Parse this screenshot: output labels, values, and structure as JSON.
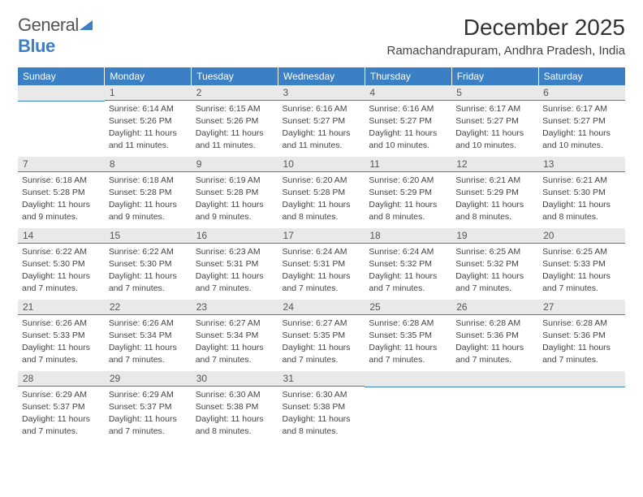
{
  "logo": {
    "text_a": "General",
    "text_b": "Blue"
  },
  "title": "December 2025",
  "location": "Ramachandrapuram, Andhra Pradesh, India",
  "calendar": {
    "header_bg": "#3b7fc4",
    "header_fg": "#ffffff",
    "daynum_bg": "#e9e9e9",
    "divider_color": "#3b7fc4",
    "body_fontsize": 10.5,
    "columns": [
      "Sunday",
      "Monday",
      "Tuesday",
      "Wednesday",
      "Thursday",
      "Friday",
      "Saturday"
    ],
    "weeks": [
      [
        null,
        {
          "n": "1",
          "sunrise": "6:14 AM",
          "sunset": "5:26 PM",
          "daylight": "11 hours and 11 minutes."
        },
        {
          "n": "2",
          "sunrise": "6:15 AM",
          "sunset": "5:26 PM",
          "daylight": "11 hours and 11 minutes."
        },
        {
          "n": "3",
          "sunrise": "6:16 AM",
          "sunset": "5:27 PM",
          "daylight": "11 hours and 11 minutes."
        },
        {
          "n": "4",
          "sunrise": "6:16 AM",
          "sunset": "5:27 PM",
          "daylight": "11 hours and 10 minutes."
        },
        {
          "n": "5",
          "sunrise": "6:17 AM",
          "sunset": "5:27 PM",
          "daylight": "11 hours and 10 minutes."
        },
        {
          "n": "6",
          "sunrise": "6:17 AM",
          "sunset": "5:27 PM",
          "daylight": "11 hours and 10 minutes."
        }
      ],
      [
        {
          "n": "7",
          "sunrise": "6:18 AM",
          "sunset": "5:28 PM",
          "daylight": "11 hours and 9 minutes."
        },
        {
          "n": "8",
          "sunrise": "6:18 AM",
          "sunset": "5:28 PM",
          "daylight": "11 hours and 9 minutes."
        },
        {
          "n": "9",
          "sunrise": "6:19 AM",
          "sunset": "5:28 PM",
          "daylight": "11 hours and 9 minutes."
        },
        {
          "n": "10",
          "sunrise": "6:20 AM",
          "sunset": "5:28 PM",
          "daylight": "11 hours and 8 minutes."
        },
        {
          "n": "11",
          "sunrise": "6:20 AM",
          "sunset": "5:29 PM",
          "daylight": "11 hours and 8 minutes."
        },
        {
          "n": "12",
          "sunrise": "6:21 AM",
          "sunset": "5:29 PM",
          "daylight": "11 hours and 8 minutes."
        },
        {
          "n": "13",
          "sunrise": "6:21 AM",
          "sunset": "5:30 PM",
          "daylight": "11 hours and 8 minutes."
        }
      ],
      [
        {
          "n": "14",
          "sunrise": "6:22 AM",
          "sunset": "5:30 PM",
          "daylight": "11 hours and 7 minutes."
        },
        {
          "n": "15",
          "sunrise": "6:22 AM",
          "sunset": "5:30 PM",
          "daylight": "11 hours and 7 minutes."
        },
        {
          "n": "16",
          "sunrise": "6:23 AM",
          "sunset": "5:31 PM",
          "daylight": "11 hours and 7 minutes."
        },
        {
          "n": "17",
          "sunrise": "6:24 AM",
          "sunset": "5:31 PM",
          "daylight": "11 hours and 7 minutes."
        },
        {
          "n": "18",
          "sunrise": "6:24 AM",
          "sunset": "5:32 PM",
          "daylight": "11 hours and 7 minutes."
        },
        {
          "n": "19",
          "sunrise": "6:25 AM",
          "sunset": "5:32 PM",
          "daylight": "11 hours and 7 minutes."
        },
        {
          "n": "20",
          "sunrise": "6:25 AM",
          "sunset": "5:33 PM",
          "daylight": "11 hours and 7 minutes."
        }
      ],
      [
        {
          "n": "21",
          "sunrise": "6:26 AM",
          "sunset": "5:33 PM",
          "daylight": "11 hours and 7 minutes."
        },
        {
          "n": "22",
          "sunrise": "6:26 AM",
          "sunset": "5:34 PM",
          "daylight": "11 hours and 7 minutes."
        },
        {
          "n": "23",
          "sunrise": "6:27 AM",
          "sunset": "5:34 PM",
          "daylight": "11 hours and 7 minutes."
        },
        {
          "n": "24",
          "sunrise": "6:27 AM",
          "sunset": "5:35 PM",
          "daylight": "11 hours and 7 minutes."
        },
        {
          "n": "25",
          "sunrise": "6:28 AM",
          "sunset": "5:35 PM",
          "daylight": "11 hours and 7 minutes."
        },
        {
          "n": "26",
          "sunrise": "6:28 AM",
          "sunset": "5:36 PM",
          "daylight": "11 hours and 7 minutes."
        },
        {
          "n": "27",
          "sunrise": "6:28 AM",
          "sunset": "5:36 PM",
          "daylight": "11 hours and 7 minutes."
        }
      ],
      [
        {
          "n": "28",
          "sunrise": "6:29 AM",
          "sunset": "5:37 PM",
          "daylight": "11 hours and 7 minutes."
        },
        {
          "n": "29",
          "sunrise": "6:29 AM",
          "sunset": "5:37 PM",
          "daylight": "11 hours and 7 minutes."
        },
        {
          "n": "30",
          "sunrise": "6:30 AM",
          "sunset": "5:38 PM",
          "daylight": "11 hours and 8 minutes."
        },
        {
          "n": "31",
          "sunrise": "6:30 AM",
          "sunset": "5:38 PM",
          "daylight": "11 hours and 8 minutes."
        },
        null,
        null,
        null
      ]
    ],
    "labels": {
      "sunrise": "Sunrise:",
      "sunset": "Sunset:",
      "daylight": "Daylight:"
    }
  }
}
